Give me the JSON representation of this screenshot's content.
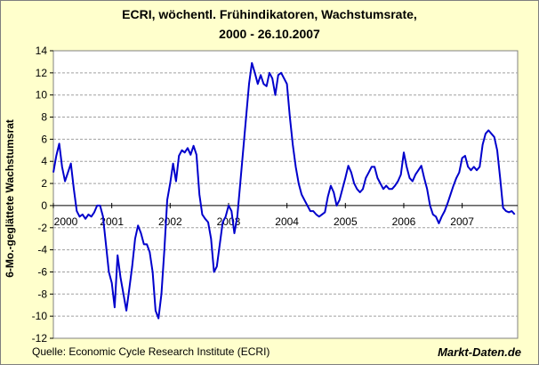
{
  "chart_data": {
    "type": "line",
    "title": "ECRI, wöchentl. Frühindikatoren, Wachstumsrate,",
    "subtitle": "2000 - 26.10.2007",
    "ylabel": "6-Mo.-geglättete Wachstumsrat",
    "xlabel": "",
    "ylim": [
      -12,
      14
    ],
    "yticks": [
      -12,
      -10,
      -8,
      -6,
      -4,
      -2,
      0,
      2,
      4,
      6,
      8,
      10,
      12,
      14
    ],
    "xlim": [
      2000.0,
      2007.95
    ],
    "xticks": [
      {
        "label": "2000",
        "x": 2000
      },
      {
        "label": "2001",
        "x": 2001
      },
      {
        "label": "2002",
        "x": 2002
      },
      {
        "label": "2003",
        "x": 2003
      },
      {
        "label": "2004",
        "x": 2004
      },
      {
        "label": "2005",
        "x": 2005
      },
      {
        "label": "2006",
        "x": 2006
      },
      {
        "label": "2007",
        "x": 2007
      }
    ],
    "grid": true,
    "legend": "none",
    "line_color": "#0000cc",
    "series": [
      {
        "x": [
          2000.0,
          2000.05,
          2000.1,
          2000.15,
          2000.2,
          2000.25,
          2000.3,
          2000.35,
          2000.4,
          2000.45,
          2000.5,
          2000.55,
          2000.6,
          2000.65,
          2000.7,
          2000.75,
          2000.8,
          2000.85,
          2000.9,
          2000.95,
          2001.0,
          2001.05,
          2001.1,
          2001.15,
          2001.2,
          2001.25,
          2001.3,
          2001.35,
          2001.4,
          2001.45,
          2001.5,
          2001.55,
          2001.6,
          2001.65,
          2001.7,
          2001.75,
          2001.8,
          2001.85,
          2001.9,
          2001.95,
          2002.0,
          2002.05,
          2002.1,
          2002.15,
          2002.2,
          2002.25,
          2002.3,
          2002.35,
          2002.4,
          2002.45,
          2002.5,
          2002.55,
          2002.6,
          2002.65,
          2002.7,
          2002.75,
          2002.8,
          2002.85,
          2002.9,
          2002.95,
          2003.0,
          2003.05,
          2003.1,
          2003.15,
          2003.2,
          2003.25,
          2003.3,
          2003.35,
          2003.4,
          2003.45,
          2003.5,
          2003.55,
          2003.6,
          2003.65,
          2003.7,
          2003.75,
          2003.8,
          2003.85,
          2003.9,
          2003.95,
          2004.0,
          2004.05,
          2004.1,
          2004.15,
          2004.2,
          2004.25,
          2004.3,
          2004.35,
          2004.4,
          2004.45,
          2004.5,
          2004.55,
          2004.6,
          2004.65,
          2004.7,
          2004.75,
          2004.8,
          2004.85,
          2004.9,
          2004.95,
          2005.0,
          2005.05,
          2005.1,
          2005.15,
          2005.2,
          2005.25,
          2005.3,
          2005.35,
          2005.4,
          2005.45,
          2005.5,
          2005.55,
          2005.6,
          2005.65,
          2005.7,
          2005.75,
          2005.8,
          2005.85,
          2005.9,
          2005.95,
          2006.0,
          2006.05,
          2006.1,
          2006.15,
          2006.2,
          2006.25,
          2006.3,
          2006.35,
          2006.4,
          2006.45,
          2006.5,
          2006.55,
          2006.6,
          2006.65,
          2006.7,
          2006.75,
          2006.8,
          2006.85,
          2006.9,
          2006.95,
          2007.0,
          2007.05,
          2007.1,
          2007.15,
          2007.2,
          2007.25,
          2007.3,
          2007.35,
          2007.4,
          2007.45,
          2007.5,
          2007.55,
          2007.6,
          2007.65,
          2007.7,
          2007.75,
          2007.8,
          2007.85,
          2007.9
        ],
        "y": [
          3.0,
          4.5,
          5.6,
          3.5,
          2.2,
          3.0,
          3.8,
          1.5,
          -0.5,
          -1.0,
          -0.8,
          -1.2,
          -0.8,
          -1.0,
          -0.6,
          0.0,
          0.0,
          -1.0,
          -3.5,
          -6.0,
          -7.0,
          -9.2,
          -4.5,
          -6.5,
          -8.0,
          -9.5,
          -7.5,
          -5.5,
          -3.0,
          -1.8,
          -2.5,
          -3.5,
          -3.5,
          -4.2,
          -6.0,
          -9.5,
          -10.2,
          -8.0,
          -4.0,
          0.5,
          2.0,
          3.8,
          2.2,
          4.5,
          5.0,
          4.8,
          5.2,
          4.6,
          5.4,
          4.6,
          1.0,
          -0.8,
          -1.2,
          -1.5,
          -3.0,
          -6.0,
          -5.5,
          -3.5,
          -1.5,
          -1.0,
          0.0,
          -0.5,
          -2.5,
          -1.0,
          2.0,
          5.0,
          8.0,
          11.0,
          12.9,
          12.0,
          11.0,
          11.8,
          11.0,
          10.8,
          12.0,
          11.5,
          10.0,
          11.8,
          12.0,
          11.5,
          11.0,
          8.0,
          5.5,
          3.5,
          2.0,
          1.0,
          0.5,
          0.0,
          -0.5,
          -0.5,
          -0.8,
          -1.0,
          -0.8,
          -0.6,
          0.8,
          1.8,
          1.2,
          0.0,
          0.5,
          1.5,
          2.5,
          3.6,
          3.0,
          2.0,
          1.5,
          1.2,
          1.5,
          2.5,
          3.0,
          3.5,
          3.5,
          2.5,
          2.0,
          1.5,
          1.8,
          1.5,
          1.5,
          1.8,
          2.2,
          2.8,
          4.8,
          3.5,
          2.5,
          2.2,
          2.8,
          3.2,
          3.6,
          2.5,
          1.5,
          0.0,
          -0.8,
          -1.0,
          -1.6,
          -1.0,
          -0.5,
          0.2,
          1.0,
          1.8,
          2.5,
          3.0,
          4.3,
          4.5,
          3.5,
          3.2,
          3.5,
          3.2,
          3.5,
          5.5,
          6.5,
          6.8,
          6.5,
          6.2,
          5.0,
          2.5,
          -0.2,
          -0.5,
          -0.6,
          -0.5,
          -0.8
        ]
      }
    ]
  },
  "footer": {
    "source": "Quelle: Economic Cycle Research Institute (ECRI)",
    "brand": "Markt-Daten.de"
  }
}
